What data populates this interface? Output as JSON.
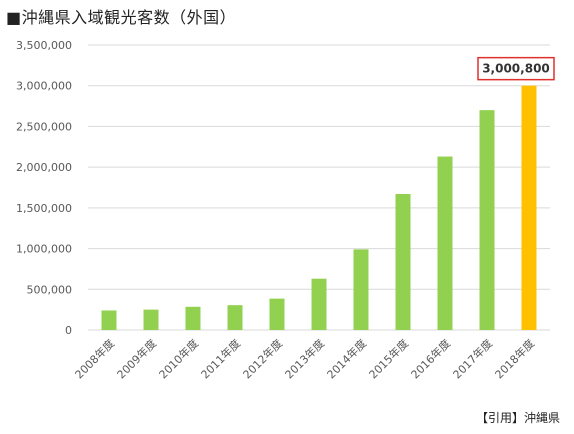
{
  "title": "■沖縄県入域観光客数（外国）",
  "source": "【引用】沖縄県",
  "chart_data": {
    "type": "bar",
    "title": "■沖縄県入域観光客数（外国）",
    "categories": [
      "2008年度",
      "2009年度",
      "2010年度",
      "2011年度",
      "2012年度",
      "2013年度",
      "2014年度",
      "2015年度",
      "2016年度",
      "2017年度",
      "2018年度"
    ],
    "values": [
      240000,
      250000,
      285000,
      305000,
      385000,
      630000,
      990000,
      1670000,
      2130000,
      2700000,
      3000800
    ],
    "ylim": [
      0,
      3500000
    ],
    "yticks": [
      0,
      500000,
      1000000,
      1500000,
      2000000,
      2500000,
      3000000,
      3500000
    ],
    "ytick_labels": [
      "0",
      "500,000",
      "1,000,000",
      "1,500,000",
      "2,000,000",
      "2,500,000",
      "3,000,000",
      "3,500,000"
    ],
    "grid": true,
    "colors": {
      "bar": "#92d050",
      "highlight": "#ffc000",
      "grid": "#d9d9d9",
      "callout_border": "#e0302c"
    },
    "highlight_index": 10,
    "annotation": "3,000,800"
  }
}
